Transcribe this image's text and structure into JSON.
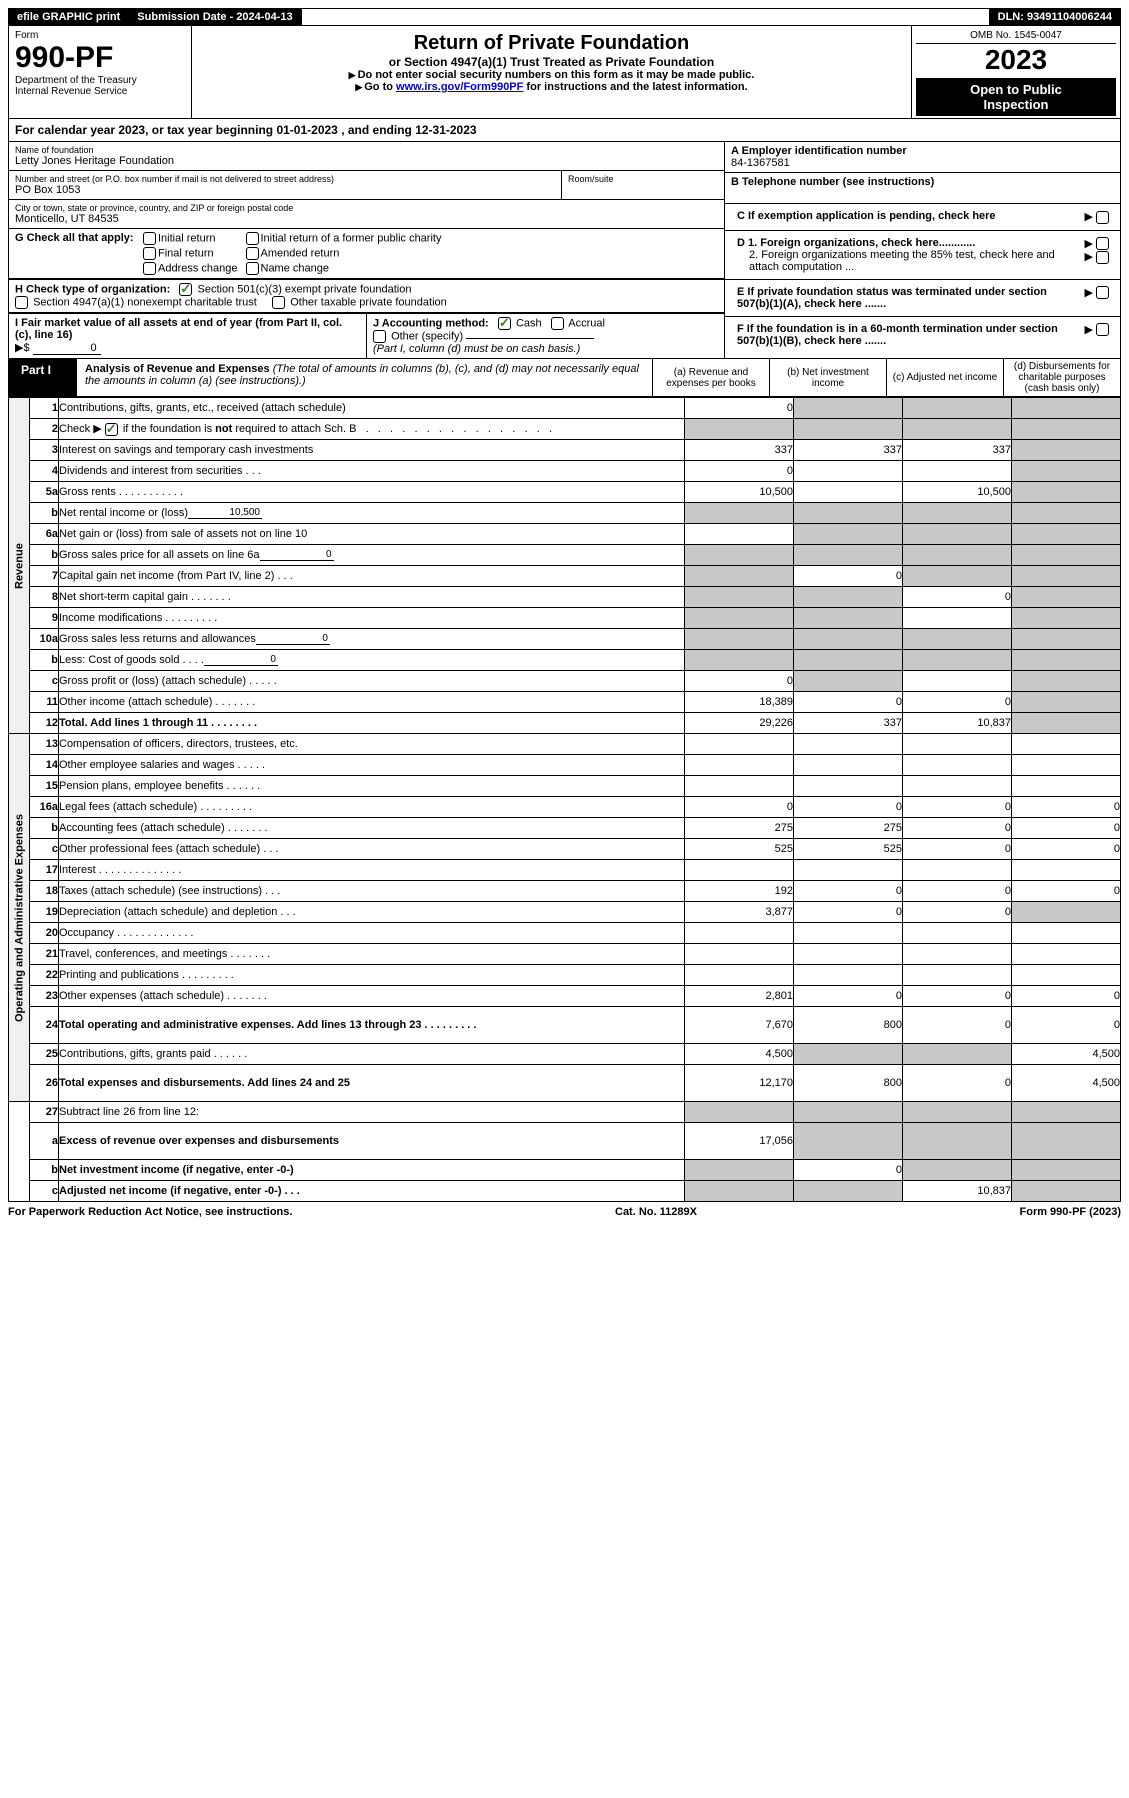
{
  "topbar": {
    "efile": "efile GRAPHIC print",
    "sub_label": "Submission Date - 2024-04-13",
    "dln_label": "DLN: 93491104006244"
  },
  "header": {
    "form_label": "Form",
    "form_no": "990-PF",
    "dept1": "Department of the Treasury",
    "dept2": "Internal Revenue Service",
    "title": "Return of Private Foundation",
    "subtitle": "or Section 4947(a)(1) Trust Treated as Private Foundation",
    "instr1": "Do not enter social security numbers on this form as it may be made public.",
    "instr2_pre": "Go to ",
    "instr2_link": "www.irs.gov/Form990PF",
    "instr2_post": " for instructions and the latest information.",
    "omb": "OMB No. 1545-0047",
    "year": "2023",
    "open1": "Open to Public",
    "open2": "Inspection"
  },
  "calyear": {
    "pre": "For calendar year 2023, or tax year beginning ",
    "begin": "01-01-2023",
    "mid": " , and ending ",
    "end": "12-31-2023"
  },
  "entity": {
    "name_lab": "Name of foundation",
    "name": "Letty Jones Heritage Foundation",
    "addr_lab": "Number and street (or P.O. box number if mail is not delivered to street address)",
    "addr": "PO Box 1053",
    "room_lab": "Room/suite",
    "city_lab": "City or town, state or province, country, and ZIP or foreign postal code",
    "city": "Monticello, UT  84535"
  },
  "right": {
    "a_lab": "A Employer identification number",
    "a_val": "84-1367581",
    "b_lab": "B Telephone number (see instructions)",
    "c_lab": "C If exemption application is pending, check here",
    "d1": "D 1. Foreign organizations, check here............",
    "d2": "2. Foreign organizations meeting the 85% test, check here and attach computation ...",
    "e": "E  If private foundation status was terminated under section 507(b)(1)(A), check here .......",
    "f": "F  If the foundation is in a 60-month termination under section 507(b)(1)(B), check here .......",
    "arrow": "▶"
  },
  "checks": {
    "g_lab": "G Check all that apply:",
    "initial": "Initial return",
    "final": "Final return",
    "addrchg": "Address change",
    "initial_pub": "Initial return of a former public charity",
    "amended": "Amended return",
    "namechg": "Name change",
    "h_lab": "H Check type of organization:",
    "h1": "Section 501(c)(3) exempt private foundation",
    "h2": "Section 4947(a)(1) nonexempt charitable trust",
    "h3": "Other taxable private foundation",
    "i_lab": "I Fair market value of all assets at end of year (from Part II, col. (c), line 16)",
    "i_pre": "▶$ ",
    "i_val": "0",
    "j_lab": "J Accounting method:",
    "j_cash": "Cash",
    "j_accr": "Accrual",
    "j_other": "Other (specify)",
    "j_note": "(Part I, column (d) must be on cash basis.)"
  },
  "part1": {
    "tag": "Part I",
    "title_b": "Analysis of Revenue and Expenses ",
    "title_i": "(The total of amounts in columns (b), (c), and (d) may not necessarily equal the amounts in column (a) (see instructions).)",
    "ca": "(a)   Revenue and expenses per books",
    "cb": "(b)   Net investment income",
    "cc": "(c)   Adjusted net income",
    "cd": "(d)  Disbursements for charitable purposes (cash basis only)"
  },
  "side": {
    "rev": "Revenue",
    "exp": "Operating and Administrative Expenses"
  },
  "rows": [
    {
      "n": "1",
      "l": "Contributions, gifts, grants, etc., received (attach schedule)",
      "a": "0",
      "b": "",
      "c": "",
      "d": "",
      "sb": 1,
      "sc": 1,
      "sd": 1
    },
    {
      "n": "2",
      "l": "Check ▶ ☑ if the foundation is not required to attach Sch. B    .   .   .   .   .   .   .   .   .   .   .   .   .   .   .   .",
      "a": "",
      "b": "",
      "c": "",
      "d": "",
      "sa": 1,
      "sb": 1,
      "sc": 1,
      "sd": 1,
      "inline_cb": 1
    },
    {
      "n": "3",
      "l": "Interest on savings and temporary cash investments",
      "a": "337",
      "b": "337",
      "c": "337",
      "d": "",
      "sd": 1
    },
    {
      "n": "4",
      "l": "Dividends and interest from securities    .    .    .",
      "a": "0",
      "b": "",
      "c": "",
      "d": "",
      "sd": 1
    },
    {
      "n": "5a",
      "l": "Gross rents    .    .    .    .    .    .    .    .    .    .    .",
      "a": "10,500",
      "b": "",
      "c": "10,500",
      "d": "",
      "sd": 1
    },
    {
      "n": "b",
      "l": "Net rental income or (loss)",
      "a": "",
      "b": "",
      "c": "",
      "d": "",
      "sa": 1,
      "sb": 1,
      "sc": 1,
      "sd": 1,
      "mini": "10,500"
    },
    {
      "n": "6a",
      "l": "Net gain or (loss) from sale of assets not on line 10",
      "a": "",
      "b": "",
      "c": "",
      "d": "",
      "sb": 1,
      "sc": 1,
      "sd": 1
    },
    {
      "n": "b",
      "l": "Gross sales price for all assets on line 6a",
      "a": "",
      "b": "",
      "c": "",
      "d": "",
      "sa": 1,
      "sb": 1,
      "sc": 1,
      "sd": 1,
      "mini": "0"
    },
    {
      "n": "7",
      "l": "Capital gain net income (from Part IV, line 2)    .    .    .",
      "a": "",
      "b": "0",
      "c": "",
      "d": "",
      "sa": 1,
      "sc": 1,
      "sd": 1
    },
    {
      "n": "8",
      "l": "Net short-term capital gain    .    .    .    .    .    .    .",
      "a": "",
      "b": "",
      "c": "0",
      "d": "",
      "sa": 1,
      "sb": 1,
      "sd": 1
    },
    {
      "n": "9",
      "l": "Income modifications  .    .    .    .    .    .    .    .    .",
      "a": "",
      "b": "",
      "c": "",
      "d": "",
      "sa": 1,
      "sb": 1,
      "sd": 1
    },
    {
      "n": "10a",
      "l": "Gross sales less returns and allowances",
      "a": "",
      "b": "",
      "c": "",
      "d": "",
      "sa": 1,
      "sb": 1,
      "sc": 1,
      "sd": 1,
      "mini": "0"
    },
    {
      "n": "b",
      "l": "Less: Cost of goods sold     .    .    .    .",
      "a": "",
      "b": "",
      "c": "",
      "d": "",
      "sa": 1,
      "sb": 1,
      "sc": 1,
      "sd": 1,
      "mini": "0"
    },
    {
      "n": "c",
      "l": "Gross profit or (loss) (attach schedule)    .    .    .    .    .",
      "a": "0",
      "b": "",
      "c": "",
      "d": "",
      "sb": 1,
      "sd": 1
    },
    {
      "n": "11",
      "l": "Other income (attach schedule)    .    .    .    .    .    .    .",
      "a": "18,389",
      "b": "0",
      "c": "0",
      "d": "",
      "sd": 1
    },
    {
      "n": "12",
      "l": "Total. Add lines 1 through 11    .    .    .    .    .    .    .    .",
      "a": "29,226",
      "b": "337",
      "c": "10,837",
      "d": "",
      "sd": 1,
      "bold": 1
    }
  ],
  "exprows": [
    {
      "n": "13",
      "l": "Compensation of officers, directors, trustees, etc.",
      "a": "",
      "b": "",
      "c": "",
      "d": ""
    },
    {
      "n": "14",
      "l": "Other employee salaries and wages    .    .    .    .    .",
      "a": "",
      "b": "",
      "c": "",
      "d": ""
    },
    {
      "n": "15",
      "l": "Pension plans, employee benefits   .    .    .    .    .    .",
      "a": "",
      "b": "",
      "c": "",
      "d": ""
    },
    {
      "n": "16a",
      "l": "Legal fees (attach schedule)  .    .    .    .    .    .    .    .    .",
      "a": "0",
      "b": "0",
      "c": "0",
      "d": "0"
    },
    {
      "n": "b",
      "l": "Accounting fees (attach schedule)   .    .    .    .    .    .    .",
      "a": "275",
      "b": "275",
      "c": "0",
      "d": "0"
    },
    {
      "n": "c",
      "l": "Other professional fees (attach schedule)     .    .    .",
      "a": "525",
      "b": "525",
      "c": "0",
      "d": "0"
    },
    {
      "n": "17",
      "l": "Interest  .    .    .    .    .    .    .    .    .    .    .    .    .    .",
      "a": "",
      "b": "",
      "c": "",
      "d": ""
    },
    {
      "n": "18",
      "l": "Taxes (attach schedule) (see instructions)     .     .     .",
      "a": "192",
      "b": "0",
      "c": "0",
      "d": "0"
    },
    {
      "n": "19",
      "l": "Depreciation (attach schedule) and depletion    .    .    .",
      "a": "3,877",
      "b": "0",
      "c": "0",
      "d": "",
      "sd": 1
    },
    {
      "n": "20",
      "l": "Occupancy  .    .    .    .    .    .    .    .    .    .    .    .    .",
      "a": "",
      "b": "",
      "c": "",
      "d": ""
    },
    {
      "n": "21",
      "l": "Travel, conferences, and meetings  .    .    .    .    .    .    .",
      "a": "",
      "b": "",
      "c": "",
      "d": ""
    },
    {
      "n": "22",
      "l": "Printing and publications  .    .    .    .    .    .    .    .    .",
      "a": "",
      "b": "",
      "c": "",
      "d": ""
    },
    {
      "n": "23",
      "l": "Other expenses (attach schedule)  .    .    .    .    .    .    .",
      "a": "2,801",
      "b": "0",
      "c": "0",
      "d": "0"
    },
    {
      "n": "24",
      "l": "Total operating and administrative expenses. Add lines 13 through 23   .    .    .    .    .    .    .    .    .",
      "a": "7,670",
      "b": "800",
      "c": "0",
      "d": "0",
      "bold": 1,
      "tall": 1
    },
    {
      "n": "25",
      "l": "Contributions, gifts, grants paid     .    .    .    .    .    .",
      "a": "4,500",
      "b": "",
      "c": "",
      "d": "4,500",
      "sb": 1,
      "sc": 1
    },
    {
      "n": "26",
      "l": "Total expenses and disbursements. Add lines 24 and 25",
      "a": "12,170",
      "b": "800",
      "c": "0",
      "d": "4,500",
      "bold": 1,
      "tall": 1
    }
  ],
  "netrows": [
    {
      "n": "27",
      "l": "Subtract line 26 from line 12:",
      "a": "",
      "b": "",
      "c": "",
      "d": "",
      "sa": 1,
      "sb": 1,
      "sc": 1,
      "sd": 1
    },
    {
      "n": "a",
      "l": "Excess of revenue over expenses and disbursements",
      "a": "17,056",
      "b": "",
      "c": "",
      "d": "",
      "bold": 1,
      "sb": 1,
      "sc": 1,
      "sd": 1,
      "tall": 1
    },
    {
      "n": "b",
      "l": "Net investment income (if negative, enter -0-)",
      "a": "",
      "b": "0",
      "c": "",
      "d": "",
      "bold": 1,
      "sa": 1,
      "sc": 1,
      "sd": 1
    },
    {
      "n": "c",
      "l": "Adjusted net income (if negative, enter -0-)    .    .    .",
      "a": "",
      "b": "",
      "c": "10,837",
      "d": "",
      "bold": 1,
      "sa": 1,
      "sb": 1,
      "sd": 1
    }
  ],
  "footer": {
    "left": "For Paperwork Reduction Act Notice, see instructions.",
    "mid": "Cat. No. 11289X",
    "right": "Form 990-PF (2023)"
  }
}
